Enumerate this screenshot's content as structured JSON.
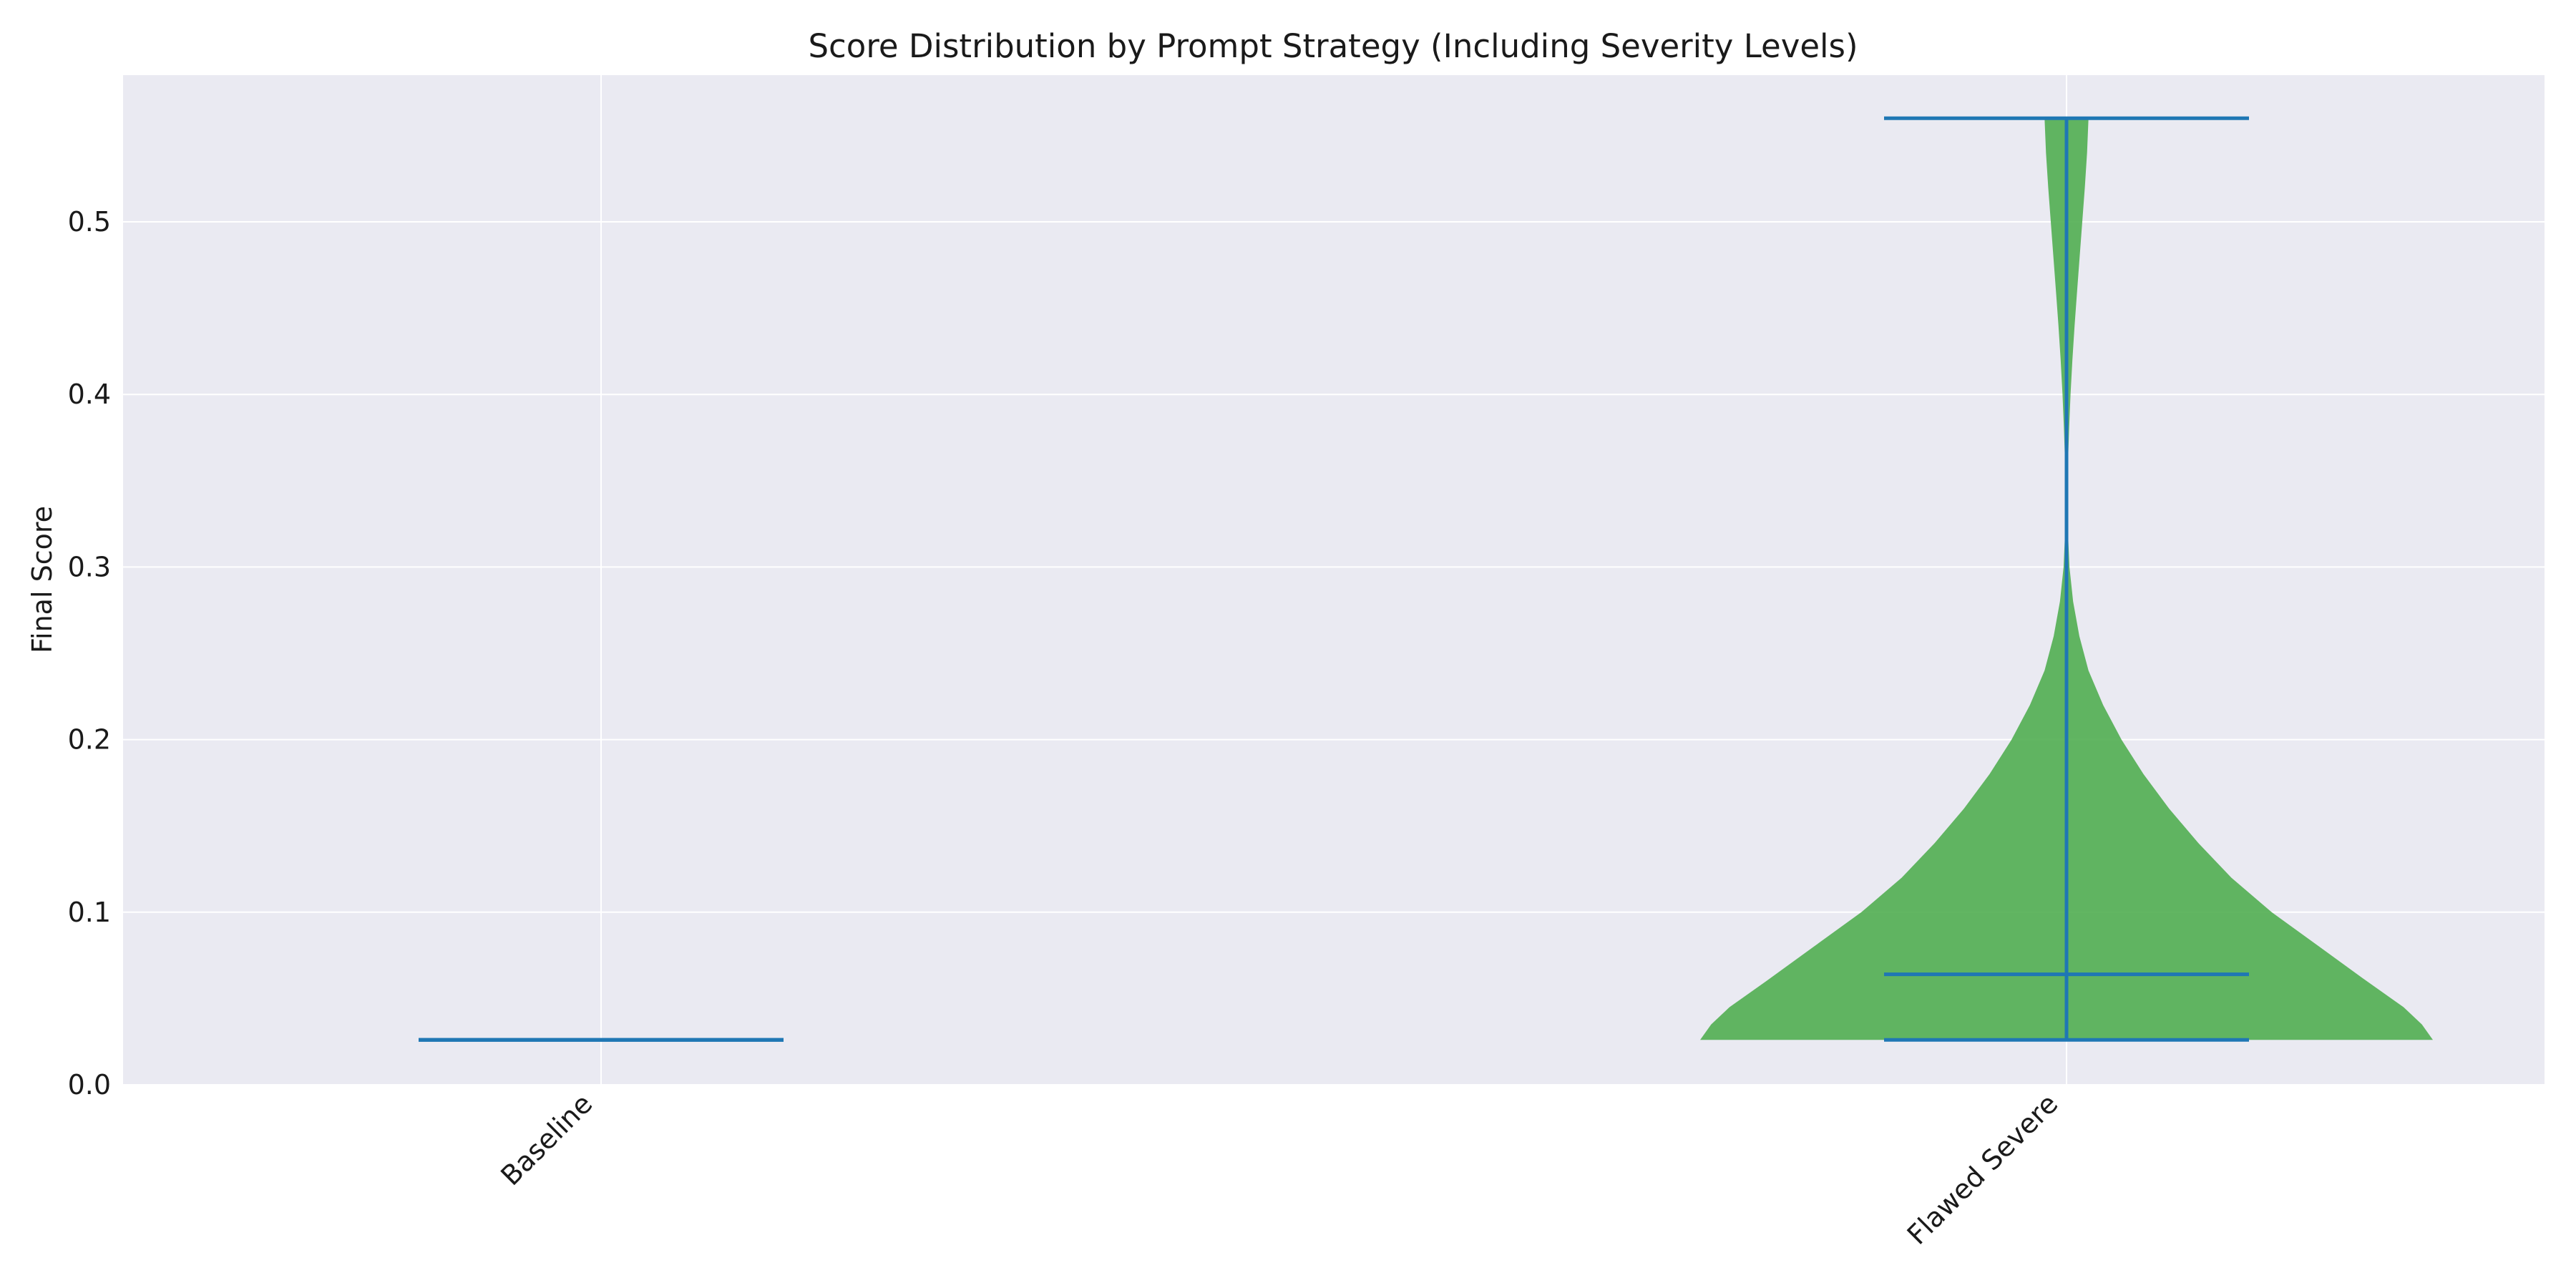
{
  "chart_data": {
    "type": "violin",
    "title": "Score Distribution by Prompt Strategy (Including Severity Levels)",
    "xlabel": "",
    "ylabel": "Final Score",
    "categories": [
      "Baseline",
      "Flawed Severe"
    ],
    "ylim": [
      0.0,
      0.585
    ],
    "yticks": [
      0.0,
      0.1,
      0.2,
      0.3,
      0.4,
      0.5
    ],
    "ytick_labels": [
      "0.0",
      "0.1",
      "0.2",
      "0.3",
      "0.4",
      "0.5"
    ],
    "grid": true,
    "violins": [
      {
        "category": "Baseline",
        "min": 0.026,
        "max": 0.026,
        "mean": 0.026,
        "density": []
      },
      {
        "category": "Flawed Severe",
        "min": 0.026,
        "max": 0.56,
        "mean": 0.064,
        "density": [
          [
            0.026,
            1.0
          ],
          [
            0.035,
            0.97
          ],
          [
            0.045,
            0.92
          ],
          [
            0.06,
            0.82
          ],
          [
            0.08,
            0.69
          ],
          [
            0.1,
            0.56
          ],
          [
            0.12,
            0.45
          ],
          [
            0.14,
            0.36
          ],
          [
            0.16,
            0.28
          ],
          [
            0.18,
            0.21
          ],
          [
            0.2,
            0.15
          ],
          [
            0.22,
            0.1
          ],
          [
            0.24,
            0.06
          ],
          [
            0.26,
            0.035
          ],
          [
            0.28,
            0.018
          ],
          [
            0.3,
            0.008
          ],
          [
            0.32,
            0.004
          ],
          [
            0.34,
            0.003
          ],
          [
            0.36,
            0.004
          ],
          [
            0.38,
            0.007
          ],
          [
            0.4,
            0.011
          ],
          [
            0.42,
            0.016
          ],
          [
            0.44,
            0.022
          ],
          [
            0.46,
            0.029
          ],
          [
            0.48,
            0.036
          ],
          [
            0.5,
            0.043
          ],
          [
            0.52,
            0.05
          ],
          [
            0.54,
            0.056
          ],
          [
            0.56,
            0.06
          ]
        ]
      }
    ],
    "colors": {
      "violin_fill": "#4cac4c",
      "stat_lines": "#1f77b4",
      "plot_bg": "#eaeaf2",
      "grid": "#ffffff"
    }
  }
}
